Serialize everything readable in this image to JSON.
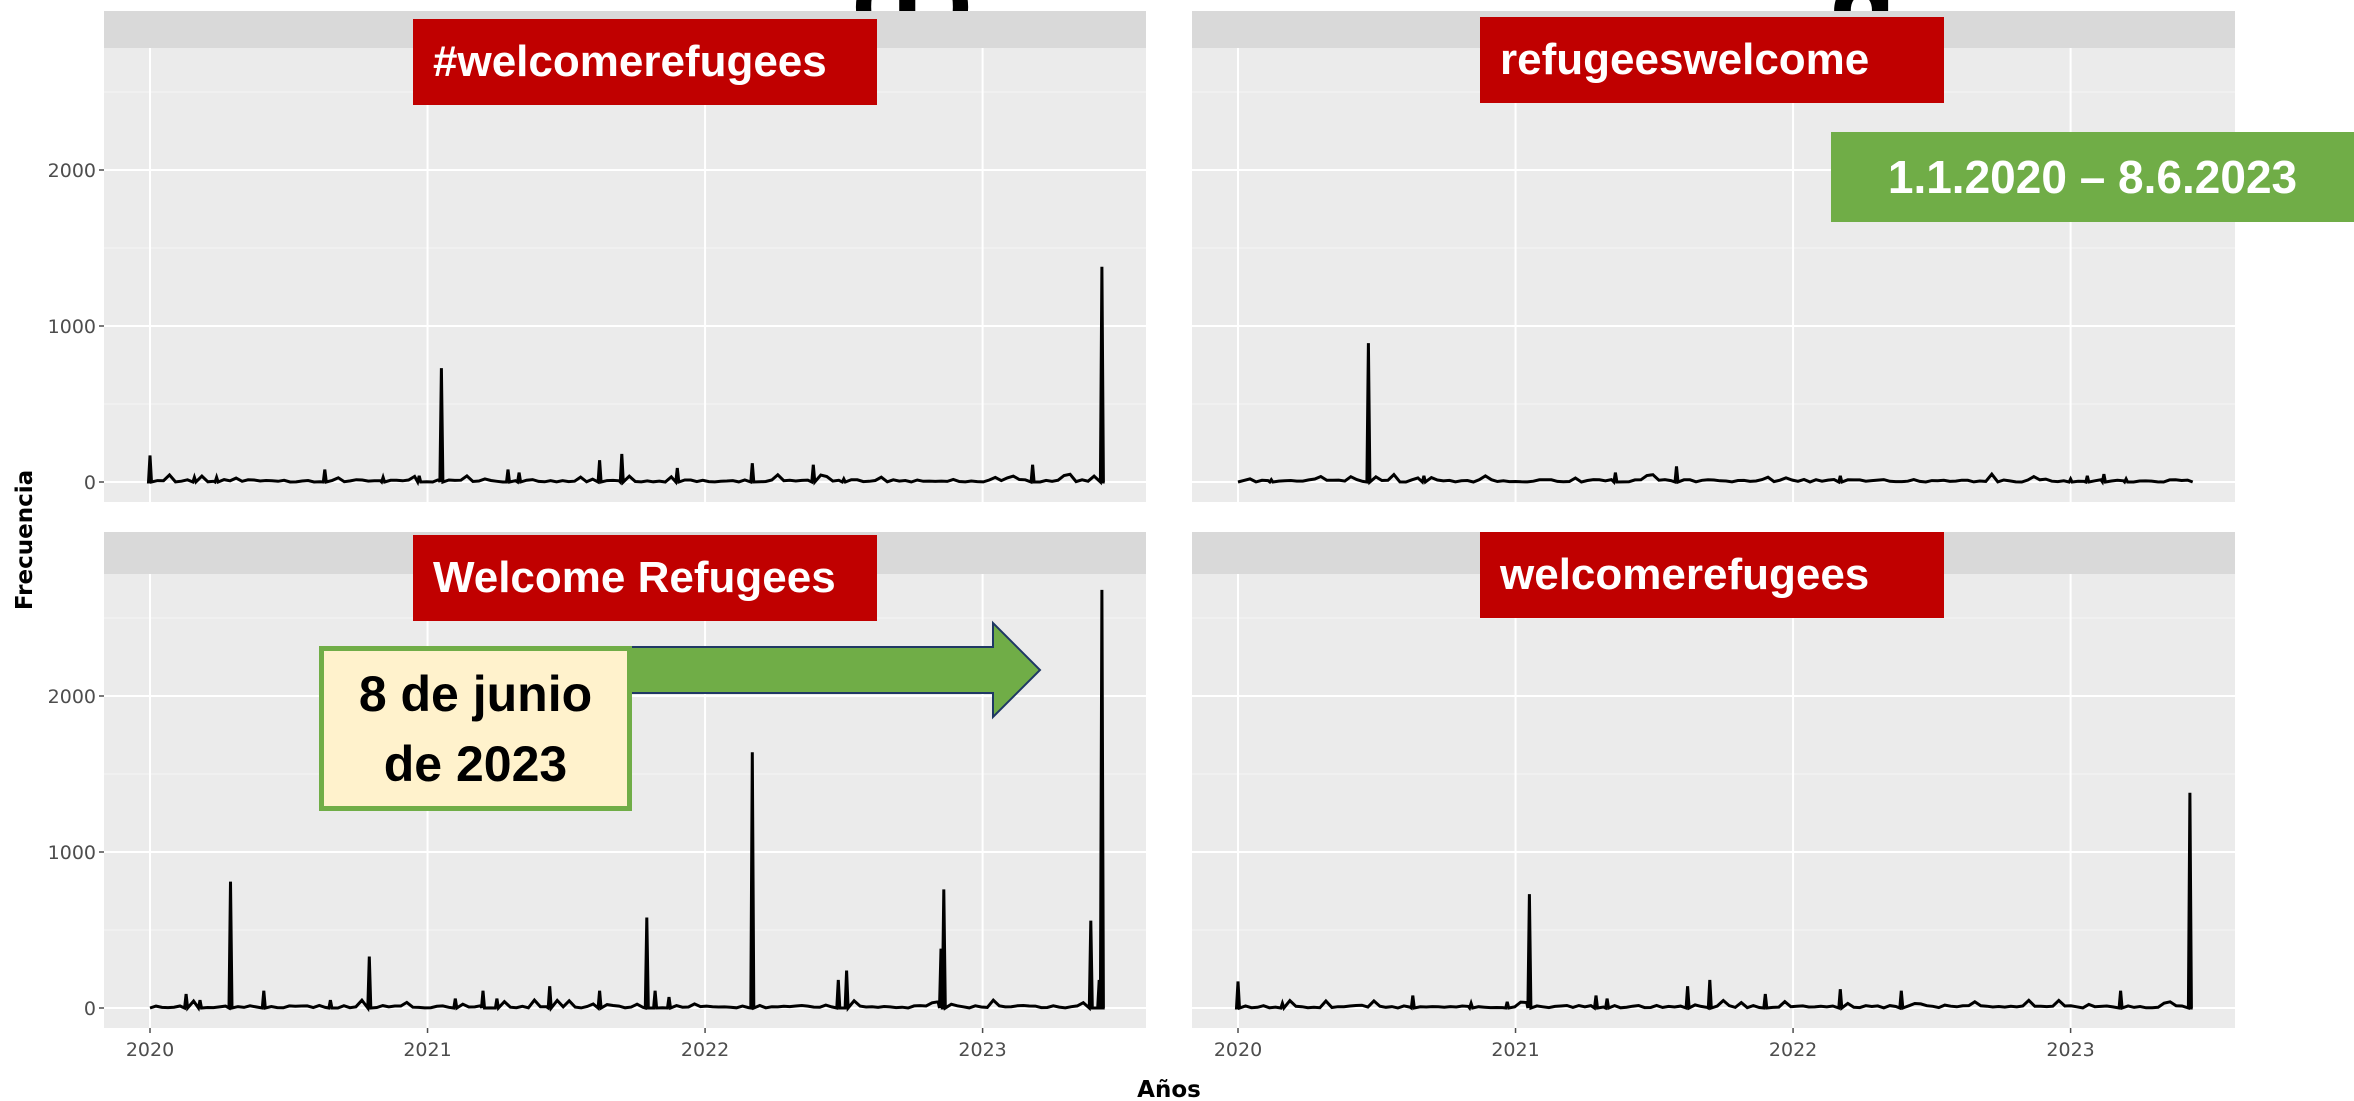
{
  "title_fragment": "(t)",
  "title_fragment_right": "g",
  "date_range_label": "1.1.2020 – 8.6.2023",
  "callout": {
    "line1": "8 de junio",
    "line2": "de 2023"
  },
  "colors": {
    "label_red": "#c00000",
    "label_green": "#70ad47",
    "callout_fill": "#fff2cc",
    "panel_bg": "#ebebeb",
    "strip_bg": "#d9d9d9",
    "line": "#000000"
  },
  "chart_data": {
    "type": "line",
    "xlabel": "Años",
    "ylabel": "Frecuencia",
    "x_ticks": [
      "2020",
      "2021",
      "2022",
      "2023"
    ],
    "y_ticks": [
      "0",
      "1000",
      "2000"
    ],
    "xlim": [
      2020.0,
      2023.44
    ],
    "ylim_top_row": [
      0,
      2000
    ],
    "ylim_bottom_row": [
      0,
      2000
    ],
    "grid": true,
    "panels": [
      {
        "name": "#welcomerefugees",
        "spikes": [
          [
            2020.0,
            170
          ],
          [
            2020.16,
            30
          ],
          [
            2020.24,
            30
          ],
          [
            2020.63,
            80
          ],
          [
            2020.84,
            30
          ],
          [
            2020.97,
            40
          ],
          [
            2021.05,
            730
          ],
          [
            2021.29,
            80
          ],
          [
            2021.33,
            60
          ],
          [
            2021.62,
            140
          ],
          [
            2021.7,
            180
          ],
          [
            2021.9,
            90
          ],
          [
            2022.17,
            120
          ],
          [
            2022.39,
            110
          ],
          [
            2022.5,
            20
          ],
          [
            2023.18,
            110
          ],
          [
            2023.43,
            1380
          ]
        ]
      },
      {
        "name": "refugeeswelcome",
        "spikes": [
          [
            2020.12,
            15
          ],
          [
            2020.47,
            890
          ],
          [
            2020.67,
            40
          ],
          [
            2021.36,
            60
          ],
          [
            2021.58,
            100
          ],
          [
            2022.17,
            40
          ],
          [
            2023.0,
            20
          ],
          [
            2023.06,
            40
          ],
          [
            2023.12,
            50
          ],
          [
            2023.2,
            20
          ]
        ]
      },
      {
        "name": "Welcome Refugees",
        "spikes": [
          [
            2020.13,
            90
          ],
          [
            2020.18,
            50
          ],
          [
            2020.29,
            810
          ],
          [
            2020.41,
            110
          ],
          [
            2020.65,
            50
          ],
          [
            2020.79,
            330
          ],
          [
            2021.1,
            60
          ],
          [
            2021.2,
            110
          ],
          [
            2021.25,
            60
          ],
          [
            2021.44,
            140
          ],
          [
            2021.62,
            110
          ],
          [
            2021.79,
            580
          ],
          [
            2021.82,
            110
          ],
          [
            2021.87,
            70
          ],
          [
            2022.17,
            1640
          ],
          [
            2022.48,
            180
          ],
          [
            2022.51,
            240
          ],
          [
            2022.85,
            380
          ],
          [
            2022.86,
            760
          ],
          [
            2023.39,
            560
          ],
          [
            2023.42,
            180
          ],
          [
            2023.43,
            2680
          ]
        ]
      },
      {
        "name": "welcomerefugees",
        "spikes": [
          [
            2020.0,
            170
          ],
          [
            2020.16,
            30
          ],
          [
            2020.63,
            80
          ],
          [
            2020.84,
            30
          ],
          [
            2020.97,
            40
          ],
          [
            2021.05,
            730
          ],
          [
            2021.29,
            80
          ],
          [
            2021.33,
            60
          ],
          [
            2021.62,
            140
          ],
          [
            2021.7,
            180
          ],
          [
            2021.9,
            90
          ],
          [
            2022.17,
            120
          ],
          [
            2022.39,
            110
          ],
          [
            2023.18,
            110
          ],
          [
            2023.43,
            1380
          ]
        ]
      }
    ]
  }
}
